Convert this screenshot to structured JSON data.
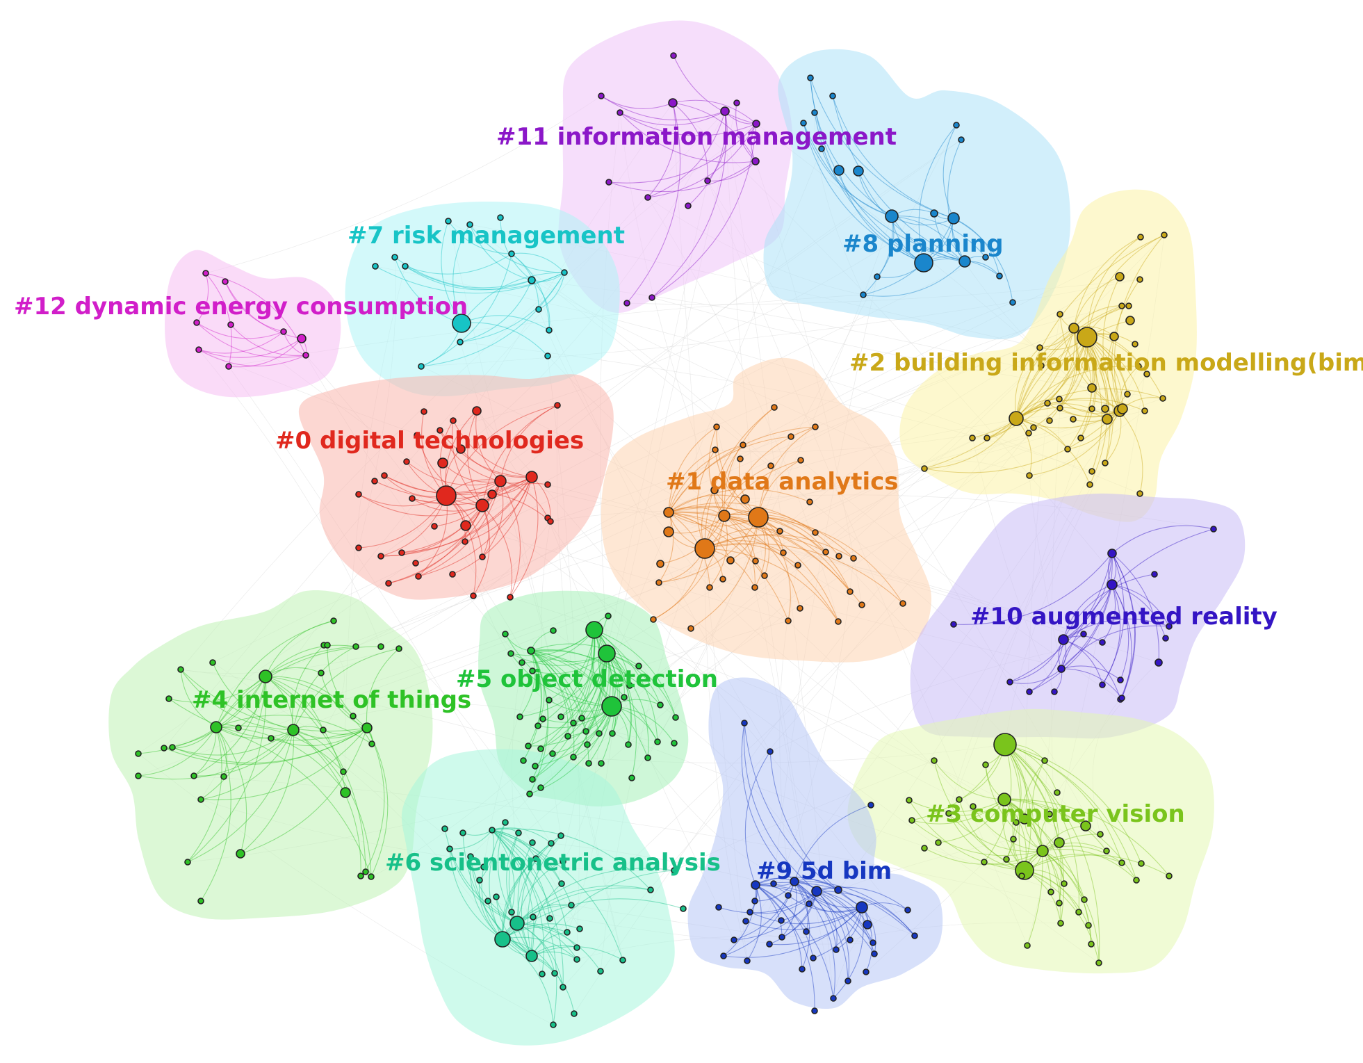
{
  "clusters": [
    {
      "id": "c0",
      "label": "#0 digital technologies",
      "color": "#e0281e",
      "fill": "#f9b7ad"
    },
    {
      "id": "c1",
      "label": "#1 data analytics",
      "color": "#e07818",
      "fill": "#fdd3b0"
    },
    {
      "id": "c2",
      "label": "#2 building information modelling(bim)",
      "color": "#c9a818",
      "fill": "#fbf3a6"
    },
    {
      "id": "c3",
      "label": "#3 computer vision",
      "color": "#7ac41c",
      "fill": "#e3f7b3"
    },
    {
      "id": "c4",
      "label": "#4 internet of things",
      "color": "#2ec226",
      "fill": "#bff2b4"
    },
    {
      "id": "c5",
      "label": "#5 object detection",
      "color": "#1fc33a",
      "fill": "#a6f0b8"
    },
    {
      "id": "c6",
      "label": "#6 scientonetric analysis",
      "color": "#17c089",
      "fill": "#a7f5dc"
    },
    {
      "id": "c7",
      "label": "#7 risk management",
      "color": "#17c4c6",
      "fill": "#aff4f5"
    },
    {
      "id": "c8",
      "label": "#8 planning",
      "color": "#1a86cc",
      "fill": "#ade2f8"
    },
    {
      "id": "c9",
      "label": "#9 5d bim",
      "color": "#1637c0",
      "fill": "#b7c6f6"
    },
    {
      "id": "c10",
      "label": "#10 augmented reality",
      "color": "#3415c4",
      "fill": "#c9bcf6"
    },
    {
      "id": "c11",
      "label": "#11 information management",
      "color": "#8b17c8",
      "fill": "#eec2f8"
    },
    {
      "id": "c12",
      "label": "#12 dynamic energy consumption",
      "color": "#d11ec9",
      "fill": "#f6bdf2"
    }
  ]
}
